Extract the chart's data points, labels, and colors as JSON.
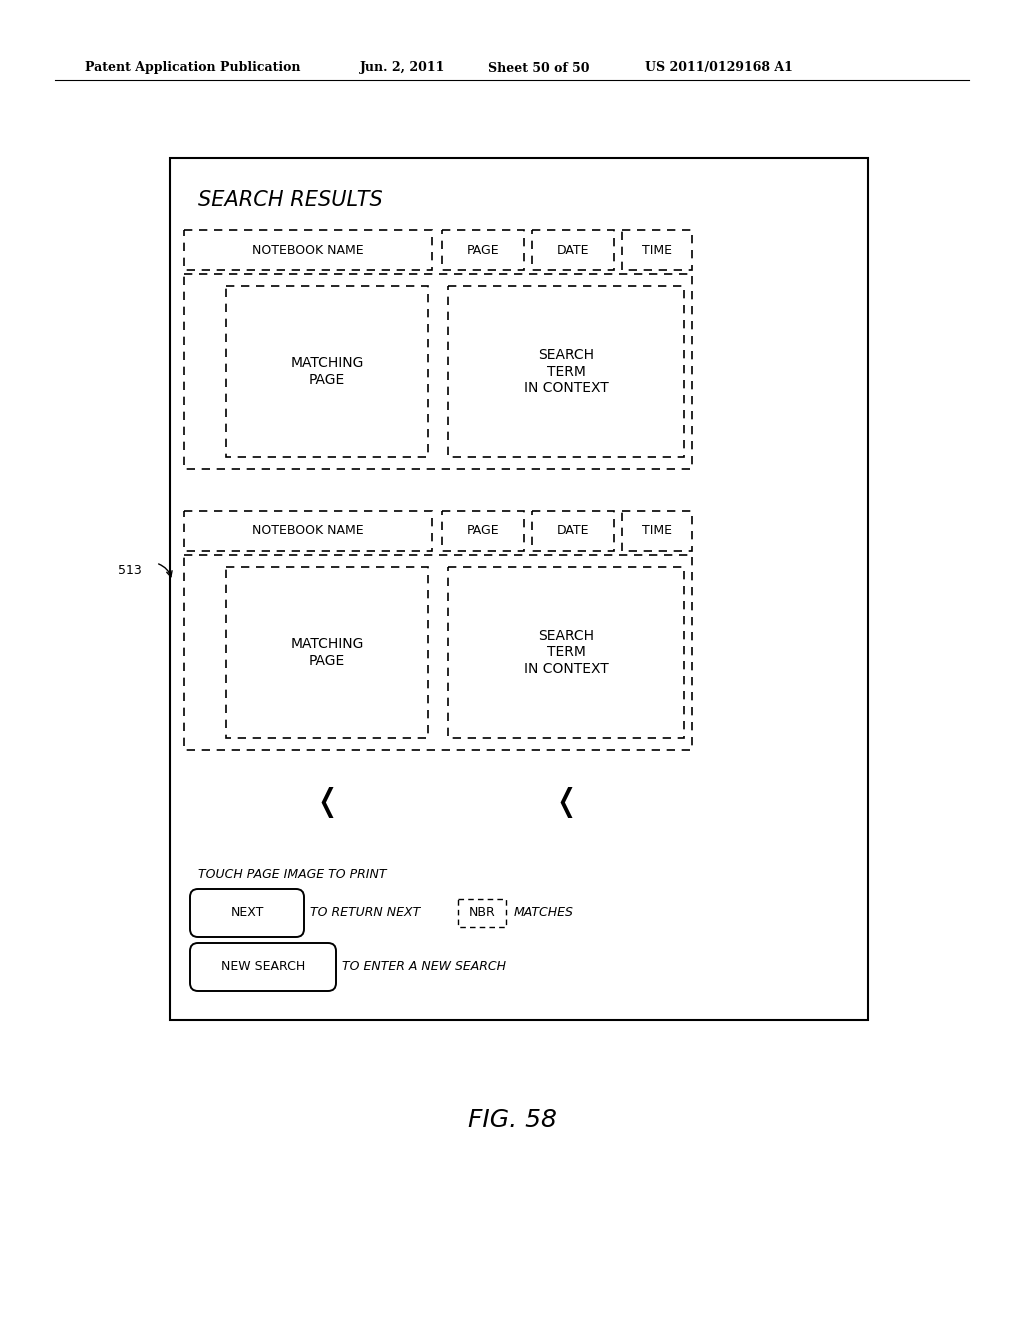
{
  "bg_color": "#ffffff",
  "header_text": "Patent Application Publication",
  "header_date": "Jun. 2, 2011",
  "header_sheet": "Sheet 50 of 50",
  "header_patent": "US 2011/0129168 A1",
  "fig_label": "FIG. 58",
  "label_513": "513",
  "title_text": "SEARCH RESULTS",
  "notebook_name": "NOTEBOOK NAME",
  "page_label": "PAGE",
  "date_label": "DATE",
  "time_label": "TIME",
  "matching_page": "MATCHING\nPAGE",
  "search_term": "SEARCH\nTERM\nIN CONTEXT",
  "touch_text": "TOUCH PAGE IMAGE TO PRINT",
  "next_btn": "NEXT",
  "next_desc": "TO RETURN NEXT",
  "nbr_label": "NBR",
  "matches_text": "MATCHES",
  "newsearch_btn": "NEW SEARCH",
  "newsearch_desc": "TO ENTER A NEW SEARCH",
  "font_color": "#000000"
}
